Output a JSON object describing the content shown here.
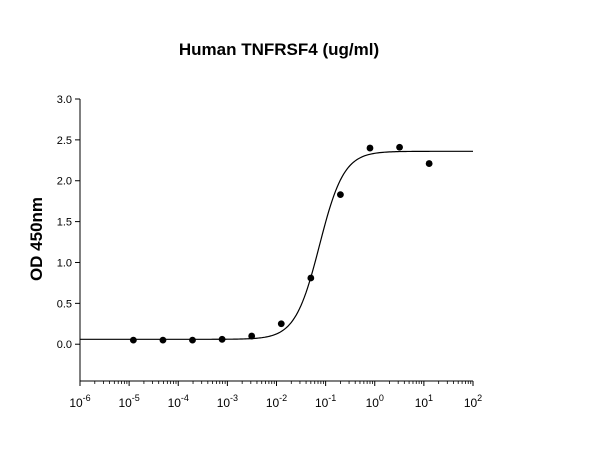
{
  "chart_data": {
    "type": "scatter",
    "title": "Human TNFRSF4 (ug/ml)",
    "xlabel": "",
    "ylabel": "OD 450nm",
    "xscale": "log",
    "xlim": [
      1e-06,
      100
    ],
    "ylim": [
      -0.45,
      3.0
    ],
    "x_tick_exponents": [
      -6,
      -5,
      -4,
      -3,
      -2,
      -1,
      0,
      1,
      2
    ],
    "y_ticks": [
      "0.0",
      "0.5",
      "1.0",
      "1.5",
      "2.0",
      "2.5",
      "3.0"
    ],
    "grid": false,
    "legend": "none",
    "series": [
      {
        "points": [
          {
            "x": 1.22e-05,
            "y": 0.05
          },
          {
            "x": 4.88e-05,
            "y": 0.05
          },
          {
            "x": 0.000195,
            "y": 0.05
          },
          {
            "x": 0.000781,
            "y": 0.06
          },
          {
            "x": 0.003125,
            "y": 0.1
          },
          {
            "x": 0.0125,
            "y": 0.25
          },
          {
            "x": 0.05,
            "y": 0.81
          },
          {
            "x": 0.2,
            "y": 1.83
          },
          {
            "x": 0.8,
            "y": 2.4
          },
          {
            "x": 3.2,
            "y": 2.41
          },
          {
            "x": 12.8,
            "y": 2.21
          }
        ],
        "fit": {
          "model": "4PL",
          "bottom": 0.06,
          "top": 2.36,
          "ec50": 0.075,
          "hill": 1.75
        },
        "marker_color": "#000000",
        "line_color": "#000000"
      }
    ]
  }
}
